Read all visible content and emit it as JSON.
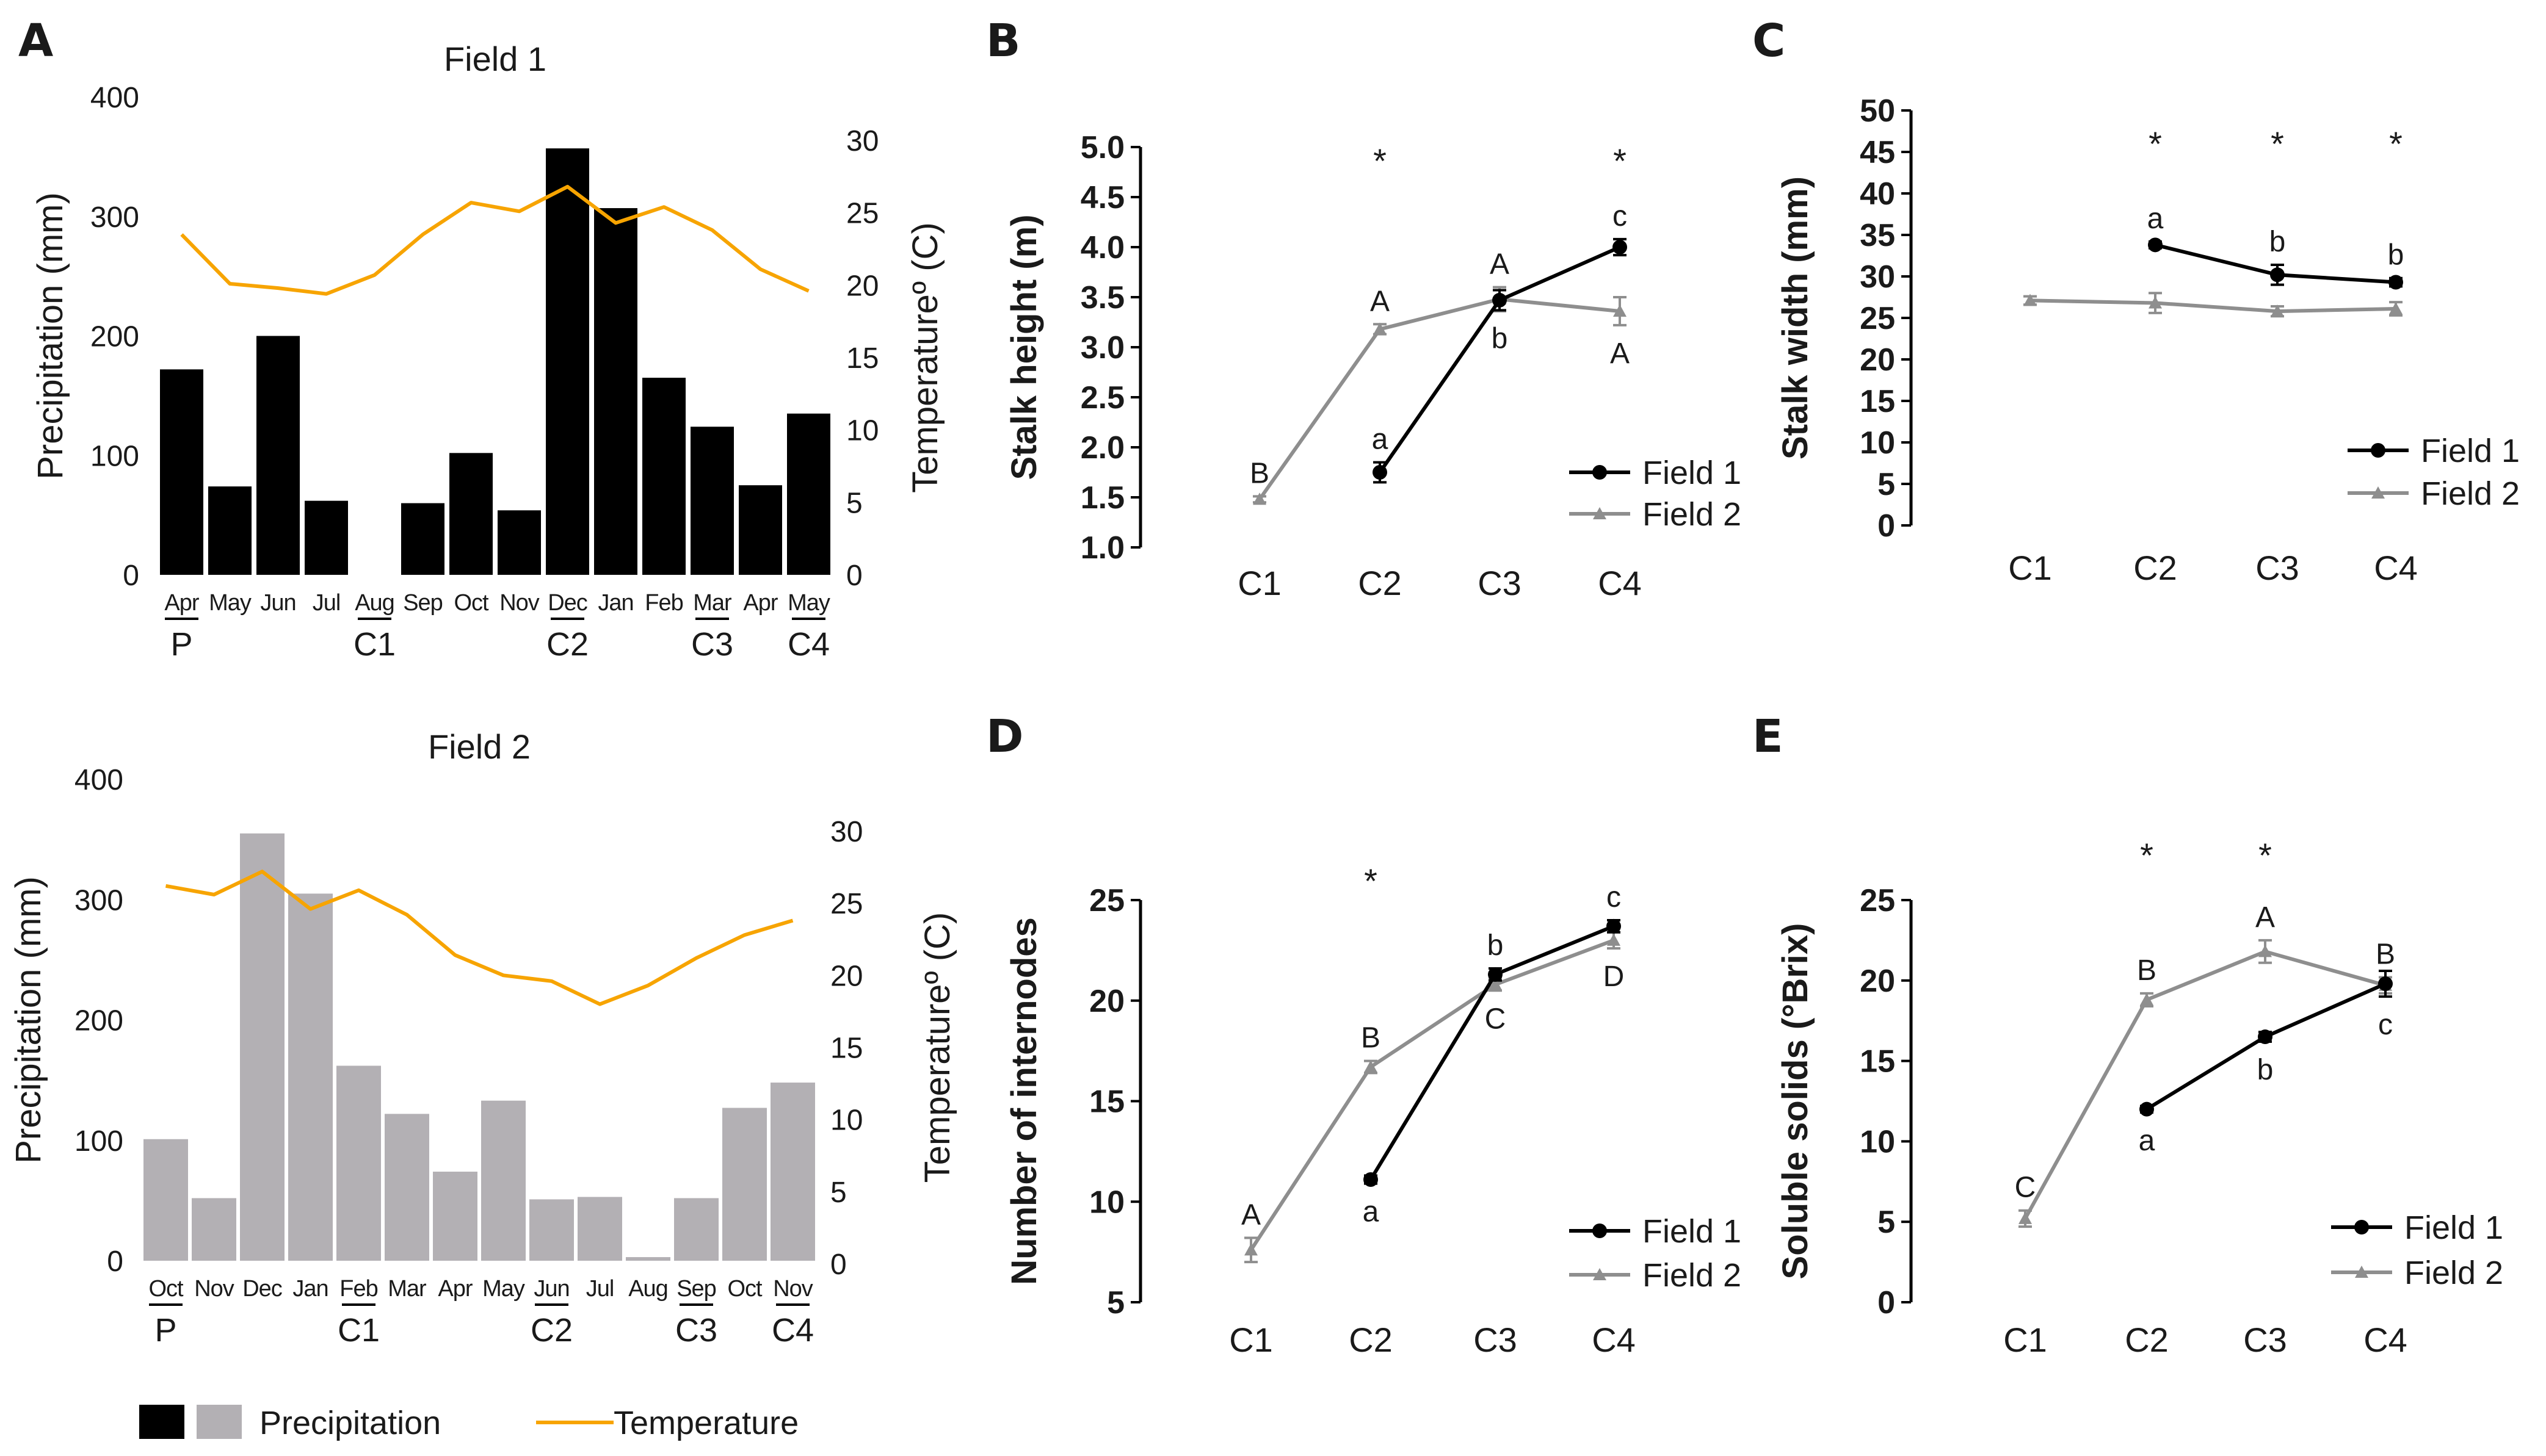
{
  "panels": {
    "A": "A",
    "B": "B",
    "C": "C",
    "D": "D",
    "E": "E"
  },
  "colors": {
    "field1_bar": "#000000",
    "field2_bar": "#b3b0b4",
    "temperature": "#f7a400",
    "field1_line": "#000000",
    "field2_line": "#8e8e8e"
  },
  "legend_A": {
    "precipitation": "Precipitation",
    "temperature": "Temperature"
  },
  "chart_data": [
    {
      "id": "A1",
      "type": "bar",
      "title": "Field 1",
      "categories": [
        "Apr",
        "May",
        "Jun",
        "Jul",
        "Aug",
        "Sep",
        "Oct",
        "Nov",
        "Dec",
        "Jan",
        "Feb",
        "Mar",
        "Apr",
        "May"
      ],
      "series": [
        {
          "name": "Precipitation",
          "axis": "left",
          "values": [
            172,
            74,
            200,
            62,
            0,
            60,
            102,
            54,
            357,
            307,
            165,
            124,
            75,
            135
          ]
        },
        {
          "name": "Temperature",
          "axis": "right",
          "type": "line",
          "values": [
            23.5,
            20.1,
            19.8,
            19.4,
            20.7,
            23.5,
            25.7,
            25.1,
            26.8,
            24.3,
            25.4,
            23.8,
            21.1,
            19.6
          ]
        }
      ],
      "ylabel": "Precipitation (mm)",
      "y2label": "Temperatureº (C)",
      "ylim": [
        0,
        400
      ],
      "y2lim": [
        0,
        30
      ],
      "yticks": [
        "0",
        "100",
        "200",
        "300",
        "400"
      ],
      "y2ticks": [
        "0",
        "5",
        "10",
        "15",
        "20",
        "25",
        "30"
      ],
      "stages": [
        {
          "label": "P",
          "from": 0,
          "to": 0
        },
        {
          "label": "C1",
          "from": 4,
          "to": 4
        },
        {
          "label": "C2",
          "from": 8,
          "to": 8
        },
        {
          "label": "C3",
          "from": 11,
          "to": 11
        },
        {
          "label": "C4",
          "from": 13,
          "to": 13
        }
      ]
    },
    {
      "id": "A2",
      "type": "bar",
      "title": "Field 2",
      "categories": [
        "Oct",
        "Nov",
        "Dec",
        "Jan",
        "Feb",
        "Mar",
        "Apr",
        "May",
        "Jun",
        "Jul",
        "Aug",
        "Sep",
        "Oct",
        "Nov"
      ],
      "series": [
        {
          "name": "Precipitation",
          "axis": "left",
          "values": [
            101,
            52,
            355,
            305,
            162,
            122,
            74,
            133,
            51,
            53,
            3,
            52,
            127,
            148
          ]
        },
        {
          "name": "Temperature",
          "axis": "right",
          "type": "line",
          "values": [
            26.2,
            25.6,
            27.2,
            24.6,
            25.9,
            24.2,
            21.4,
            20.0,
            19.6,
            18.0,
            19.3,
            21.2,
            22.8,
            23.8
          ]
        }
      ],
      "ylabel": "Precipitation (mm)",
      "y2label": "Temperatureº (C)",
      "ylim": [
        0,
        400
      ],
      "y2lim": [
        0,
        30
      ],
      "yticks": [
        "0",
        "100",
        "200",
        "300",
        "400"
      ],
      "y2ticks": [
        "0",
        "5",
        "10",
        "15",
        "20",
        "25",
        "30"
      ],
      "stages": [
        {
          "label": "P",
          "from": 0,
          "to": 0
        },
        {
          "label": "C1",
          "from": 4,
          "to": 4
        },
        {
          "label": "C2",
          "from": 8,
          "to": 8
        },
        {
          "label": "C3",
          "from": 11,
          "to": 11
        },
        {
          "label": "C4",
          "from": 13,
          "to": 13
        }
      ]
    },
    {
      "id": "B",
      "type": "line",
      "categories": [
        "C1",
        "C2",
        "C3",
        "C4"
      ],
      "ylabel": "Stalk height (m)",
      "ylim": [
        1.0,
        5.0
      ],
      "yticks": [
        "1.0",
        "1.5",
        "2.0",
        "2.5",
        "3.0",
        "3.5",
        "4.0",
        "4.5",
        "5.0"
      ],
      "series": [
        {
          "name": "Field 1",
          "values": [
            null,
            1.75,
            3.47,
            4.0
          ],
          "err": [
            null,
            0.1,
            0.1,
            0.08
          ],
          "letters": [
            "",
            "a",
            "b",
            "c"
          ],
          "letter_pos": [
            "",
            "above",
            "below",
            "above"
          ]
        },
        {
          "name": "Field 2",
          "values": [
            1.48,
            3.18,
            3.48,
            3.36
          ],
          "err": [
            0.03,
            0.05,
            0.12,
            0.14
          ],
          "letters": [
            "B",
            "A",
            "A",
            "A"
          ],
          "letter_pos": [
            "above",
            "above",
            "above",
            "below"
          ]
        }
      ],
      "stars": [
        "",
        "*",
        "",
        "*"
      ]
    },
    {
      "id": "C",
      "type": "line",
      "categories": [
        "C1",
        "C2",
        "C3",
        "C4"
      ],
      "ylabel": "Stalk width (mm)",
      "ylim": [
        0,
        50
      ],
      "yticks": [
        "0",
        "5",
        "10",
        "15",
        "20",
        "25",
        "30",
        "35",
        "40",
        "45",
        "50"
      ],
      "series": [
        {
          "name": "Field 1",
          "values": [
            null,
            33.8,
            30.2,
            29.3
          ],
          "err": [
            null,
            0.4,
            1.2,
            0.5
          ],
          "letters": [
            "",
            "a",
            "b",
            "b"
          ],
          "letter_pos": [
            "",
            "above",
            "above",
            "above"
          ]
        },
        {
          "name": "Field 2",
          "values": [
            27.1,
            26.8,
            25.8,
            26.1
          ],
          "err": [
            0.5,
            1.2,
            0.6,
            0.8
          ],
          "letters": [
            "",
            "",
            "",
            ""
          ],
          "letter_pos": [
            "",
            "",
            "",
            ""
          ]
        }
      ],
      "stars": [
        "",
        "*",
        "*",
        "*"
      ]
    },
    {
      "id": "D",
      "type": "line",
      "categories": [
        "C1",
        "C2",
        "C3",
        "C4"
      ],
      "ylabel": "Number of internodes",
      "ylim": [
        5,
        25
      ],
      "yticks": [
        "5",
        "10",
        "15",
        "20",
        "25"
      ],
      "series": [
        {
          "name": "Field 1",
          "values": [
            null,
            11.1,
            21.3,
            23.7
          ],
          "err": [
            null,
            0.2,
            0.3,
            0.3
          ],
          "letters": [
            "",
            "a",
            "b",
            "c"
          ],
          "letter_pos": [
            "",
            "below",
            "above",
            "above"
          ]
        },
        {
          "name": "Field 2",
          "values": [
            7.6,
            16.7,
            20.8,
            23.0
          ],
          "err": [
            0.6,
            0.3,
            0.3,
            0.4
          ],
          "letters": [
            "A",
            "B",
            "C",
            "D"
          ],
          "letter_pos": [
            "above",
            "above",
            "below",
            "below"
          ]
        }
      ],
      "stars": [
        "",
        "*",
        "",
        ""
      ]
    },
    {
      "id": "E",
      "type": "line",
      "categories": [
        "C1",
        "C2",
        "C3",
        "C4"
      ],
      "ylabel": "Soluble solids (°Brix)",
      "ylim": [
        0,
        25
      ],
      "yticks": [
        "0",
        "5",
        "10",
        "15",
        "20",
        "25"
      ],
      "series": [
        {
          "name": "Field 1",
          "values": [
            null,
            12.0,
            16.5,
            19.8
          ],
          "err": [
            null,
            0.2,
            0.3,
            0.8
          ],
          "letters": [
            "",
            "a",
            "b",
            "c"
          ],
          "letter_pos": [
            "",
            "below",
            "below",
            "below"
          ]
        },
        {
          "name": "Field 2",
          "values": [
            5.2,
            18.8,
            21.8,
            19.7
          ],
          "err": [
            0.5,
            0.4,
            0.7,
            0.5
          ],
          "letters": [
            "C",
            "B",
            "A",
            "B"
          ],
          "letter_pos": [
            "above",
            "above",
            "above",
            "above"
          ]
        }
      ],
      "stars": [
        "",
        "*",
        "*",
        ""
      ]
    }
  ]
}
